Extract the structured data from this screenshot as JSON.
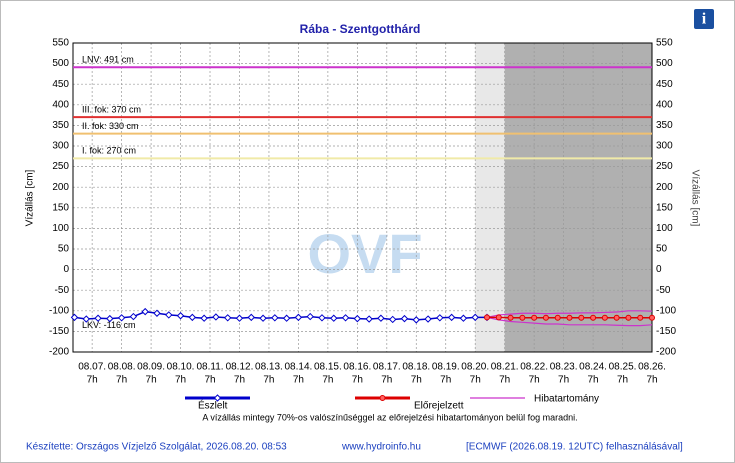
{
  "chart_data": {
    "type": "line",
    "title": "Rába - Szentgotthárd",
    "y_label": "Vízállás [cm]",
    "y2_label": "Vízállás [cm]",
    "watermark": "OVF",
    "xlim": [
      -0.65,
      19
    ],
    "xticks": [
      {
        "value": 0,
        "label": "08.07."
      },
      {
        "value": 1,
        "label": "08.08."
      },
      {
        "value": 2,
        "label": "08.09."
      },
      {
        "value": 3,
        "label": "08.10."
      },
      {
        "value": 4,
        "label": "08.11."
      },
      {
        "value": 5,
        "label": "08.12."
      },
      {
        "value": 6,
        "label": "08.13."
      },
      {
        "value": 7,
        "label": "08.14."
      },
      {
        "value": 8,
        "label": "08.15."
      },
      {
        "value": 9,
        "label": "08.16."
      },
      {
        "value": 10,
        "label": "08.17."
      },
      {
        "value": 11,
        "label": "08.18."
      },
      {
        "value": 12,
        "label": "08.19."
      },
      {
        "value": 13,
        "label": "08.20."
      },
      {
        "value": 14,
        "label": "08.21."
      },
      {
        "value": 15,
        "label": "08.22."
      },
      {
        "value": 16,
        "label": "08.23."
      },
      {
        "value": 17,
        "label": "08.24."
      },
      {
        "value": 18,
        "label": "08.25."
      },
      {
        "value": 19,
        "label": "08.26."
      }
    ],
    "xtick_hour": "7h",
    "ylim": [
      -200,
      550
    ],
    "yticks": [
      -200,
      -150,
      -100,
      -50,
      0,
      50,
      100,
      150,
      200,
      250,
      300,
      350,
      400,
      450,
      500,
      550
    ],
    "grid": true,
    "forecast_start": 13,
    "forecast_main": 14,
    "thresholds": [
      {
        "value": 491,
        "label": "LNV: 491 cm",
        "color": "#cc33cc"
      },
      {
        "value": 370,
        "label": "III. fok: 370 cm",
        "color": "#e03030"
      },
      {
        "value": 330,
        "label": "II. fok: 330 cm",
        "color": "#f0c070"
      },
      {
        "value": 270,
        "label": "I. fok: 270 cm",
        "color": "#f0eaa8"
      },
      {
        "value": -116,
        "label": "LKV: -116 cm",
        "color": null
      }
    ],
    "series": [
      {
        "name": "Észlelt",
        "color": "#0000cc",
        "x": [
          -0.6,
          -0.2,
          0.2,
          0.6,
          1.0,
          1.4,
          1.8,
          2.2,
          2.6,
          3.0,
          3.4,
          3.8,
          4.2,
          4.6,
          5.0,
          5.4,
          5.8,
          6.2,
          6.6,
          7.0,
          7.4,
          7.8,
          8.2,
          8.6,
          9.0,
          9.4,
          9.8,
          10.2,
          10.6,
          11.0,
          11.4,
          11.8,
          12.2,
          12.6,
          13.0,
          13.4
        ],
        "values": [
          -116,
          -120,
          -118,
          -119,
          -117,
          -114,
          -102,
          -106,
          -110,
          -112,
          -116,
          -118,
          -115,
          -117,
          -118,
          -116,
          -118,
          -117,
          -118,
          -116,
          -114,
          -117,
          -118,
          -117,
          -119,
          -120,
          -118,
          -121,
          -119,
          -122,
          -120,
          -117,
          -116,
          -118,
          -116,
          -116
        ]
      },
      {
        "name": "Előrejelzett",
        "color": "#dd0000",
        "x": [
          13.4,
          13.8,
          14.2,
          14.6,
          15.0,
          15.4,
          15.8,
          16.2,
          16.6,
          17.0,
          17.4,
          17.8,
          18.2,
          18.6,
          19.0
        ],
        "values": [
          -116,
          -116,
          -117,
          -117,
          -117,
          -117,
          -117,
          -117,
          -117,
          -117,
          -117,
          -117,
          -117,
          -117,
          -117
        ]
      },
      {
        "name": "Hibatartomány",
        "color": "#cc33cc",
        "x": [
          13.4,
          13.8,
          14.2,
          14.6,
          15.0,
          15.4,
          15.8,
          16.2,
          16.6,
          17.0,
          17.4,
          17.8,
          18.2,
          18.6,
          19.0
        ],
        "upper": [
          -116,
          -110,
          -108,
          -106,
          -106,
          -107,
          -106,
          -106,
          -105,
          -105,
          -104,
          -103,
          -100,
          -100,
          -101
        ],
        "lower": [
          -116,
          -122,
          -126,
          -128,
          -130,
          -132,
          -132,
          -134,
          -134,
          -134,
          -134,
          -135,
          -136,
          -136,
          -134
        ]
      }
    ],
    "note": "A vízállás mintegy 70%-os valószínűséggel az előrejelzési hibatartományon belül fog maradni.",
    "footer": [
      "Készítette: Országos Vízjelző Szolgálat, 2026.08.20. 08:53",
      "www.hydroinfo.hu",
      "[ECMWF (2026.08.19. 12UTC) felhasználásával]"
    ],
    "info_icon": "i"
  }
}
